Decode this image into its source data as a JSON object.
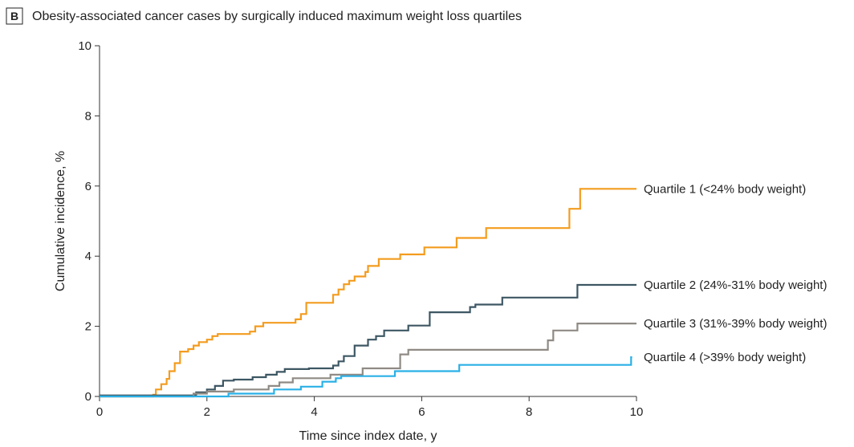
{
  "chart_data": {
    "type": "line",
    "panel_label": "B",
    "title": "Obesity-associated cancer cases by surgically induced maximum weight loss quartiles",
    "xlabel": "Time since index date, y",
    "ylabel": "Cumulative incidence, %",
    "xlim": [
      0,
      10
    ],
    "ylim": [
      0,
      10
    ],
    "xticks": [
      0,
      2,
      4,
      6,
      8,
      10
    ],
    "yticks": [
      0,
      2,
      4,
      6,
      8,
      10
    ],
    "grid": false,
    "legend": "direct-labels-right",
    "series": [
      {
        "name": "Quartile 1 (<24% body weight)",
        "color": "#f39c1e",
        "points": [
          [
            0,
            0
          ],
          [
            1.0,
            0.05
          ],
          [
            1.05,
            0.2
          ],
          [
            1.15,
            0.35
          ],
          [
            1.25,
            0.5
          ],
          [
            1.3,
            0.72
          ],
          [
            1.4,
            0.95
          ],
          [
            1.5,
            1.28
          ],
          [
            1.65,
            1.35
          ],
          [
            1.75,
            1.45
          ],
          [
            1.85,
            1.55
          ],
          [
            2.0,
            1.62
          ],
          [
            2.1,
            1.72
          ],
          [
            2.2,
            1.78
          ],
          [
            2.8,
            1.85
          ],
          [
            2.9,
            2.0
          ],
          [
            3.05,
            2.1
          ],
          [
            3.65,
            2.2
          ],
          [
            3.75,
            2.35
          ],
          [
            3.85,
            2.67
          ],
          [
            4.35,
            2.9
          ],
          [
            4.45,
            3.05
          ],
          [
            4.55,
            3.2
          ],
          [
            4.65,
            3.3
          ],
          [
            4.75,
            3.42
          ],
          [
            4.95,
            3.55
          ],
          [
            5.0,
            3.72
          ],
          [
            5.2,
            3.92
          ],
          [
            5.6,
            4.05
          ],
          [
            6.05,
            4.25
          ],
          [
            6.65,
            4.52
          ],
          [
            7.2,
            4.8
          ],
          [
            8.75,
            5.35
          ],
          [
            8.95,
            5.92
          ],
          [
            10.0,
            5.92
          ]
        ]
      },
      {
        "name": "Quartile 2 (24%-31% body weight)",
        "color": "#3d5763",
        "points": [
          [
            0,
            0.03
          ],
          [
            1.8,
            0.12
          ],
          [
            2.0,
            0.2
          ],
          [
            2.15,
            0.3
          ],
          [
            2.3,
            0.45
          ],
          [
            2.5,
            0.48
          ],
          [
            2.85,
            0.55
          ],
          [
            3.1,
            0.62
          ],
          [
            3.3,
            0.7
          ],
          [
            3.45,
            0.78
          ],
          [
            3.9,
            0.8
          ],
          [
            4.35,
            0.88
          ],
          [
            4.45,
            1.0
          ],
          [
            4.55,
            1.15
          ],
          [
            4.75,
            1.45
          ],
          [
            5.0,
            1.62
          ],
          [
            5.15,
            1.72
          ],
          [
            5.3,
            1.88
          ],
          [
            5.75,
            2.02
          ],
          [
            6.15,
            2.4
          ],
          [
            6.9,
            2.55
          ],
          [
            7.0,
            2.62
          ],
          [
            7.5,
            2.82
          ],
          [
            8.9,
            3.18
          ],
          [
            10.0,
            3.18
          ]
        ]
      },
      {
        "name": "Quartile 3 (31%-39% body weight)",
        "color": "#8f8a84",
        "points": [
          [
            0,
            0
          ],
          [
            1.75,
            0.08
          ],
          [
            2.0,
            0.14
          ],
          [
            2.5,
            0.2
          ],
          [
            3.15,
            0.3
          ],
          [
            3.35,
            0.4
          ],
          [
            3.6,
            0.52
          ],
          [
            4.3,
            0.62
          ],
          [
            4.9,
            0.8
          ],
          [
            5.6,
            1.2
          ],
          [
            5.75,
            1.33
          ],
          [
            8.35,
            1.6
          ],
          [
            8.45,
            1.88
          ],
          [
            8.9,
            2.08
          ],
          [
            10.0,
            2.08
          ]
        ]
      },
      {
        "name": "Quartile 4 (>39% body weight)",
        "color": "#2ab0e6",
        "points": [
          [
            0,
            0
          ],
          [
            2.4,
            0.08
          ],
          [
            3.25,
            0.2
          ],
          [
            3.75,
            0.28
          ],
          [
            4.15,
            0.42
          ],
          [
            4.4,
            0.52
          ],
          [
            4.5,
            0.58
          ],
          [
            5.5,
            0.72
          ],
          [
            6.7,
            0.9
          ],
          [
            9.9,
            1.12
          ],
          [
            9.92,
            1.12
          ]
        ]
      }
    ]
  }
}
